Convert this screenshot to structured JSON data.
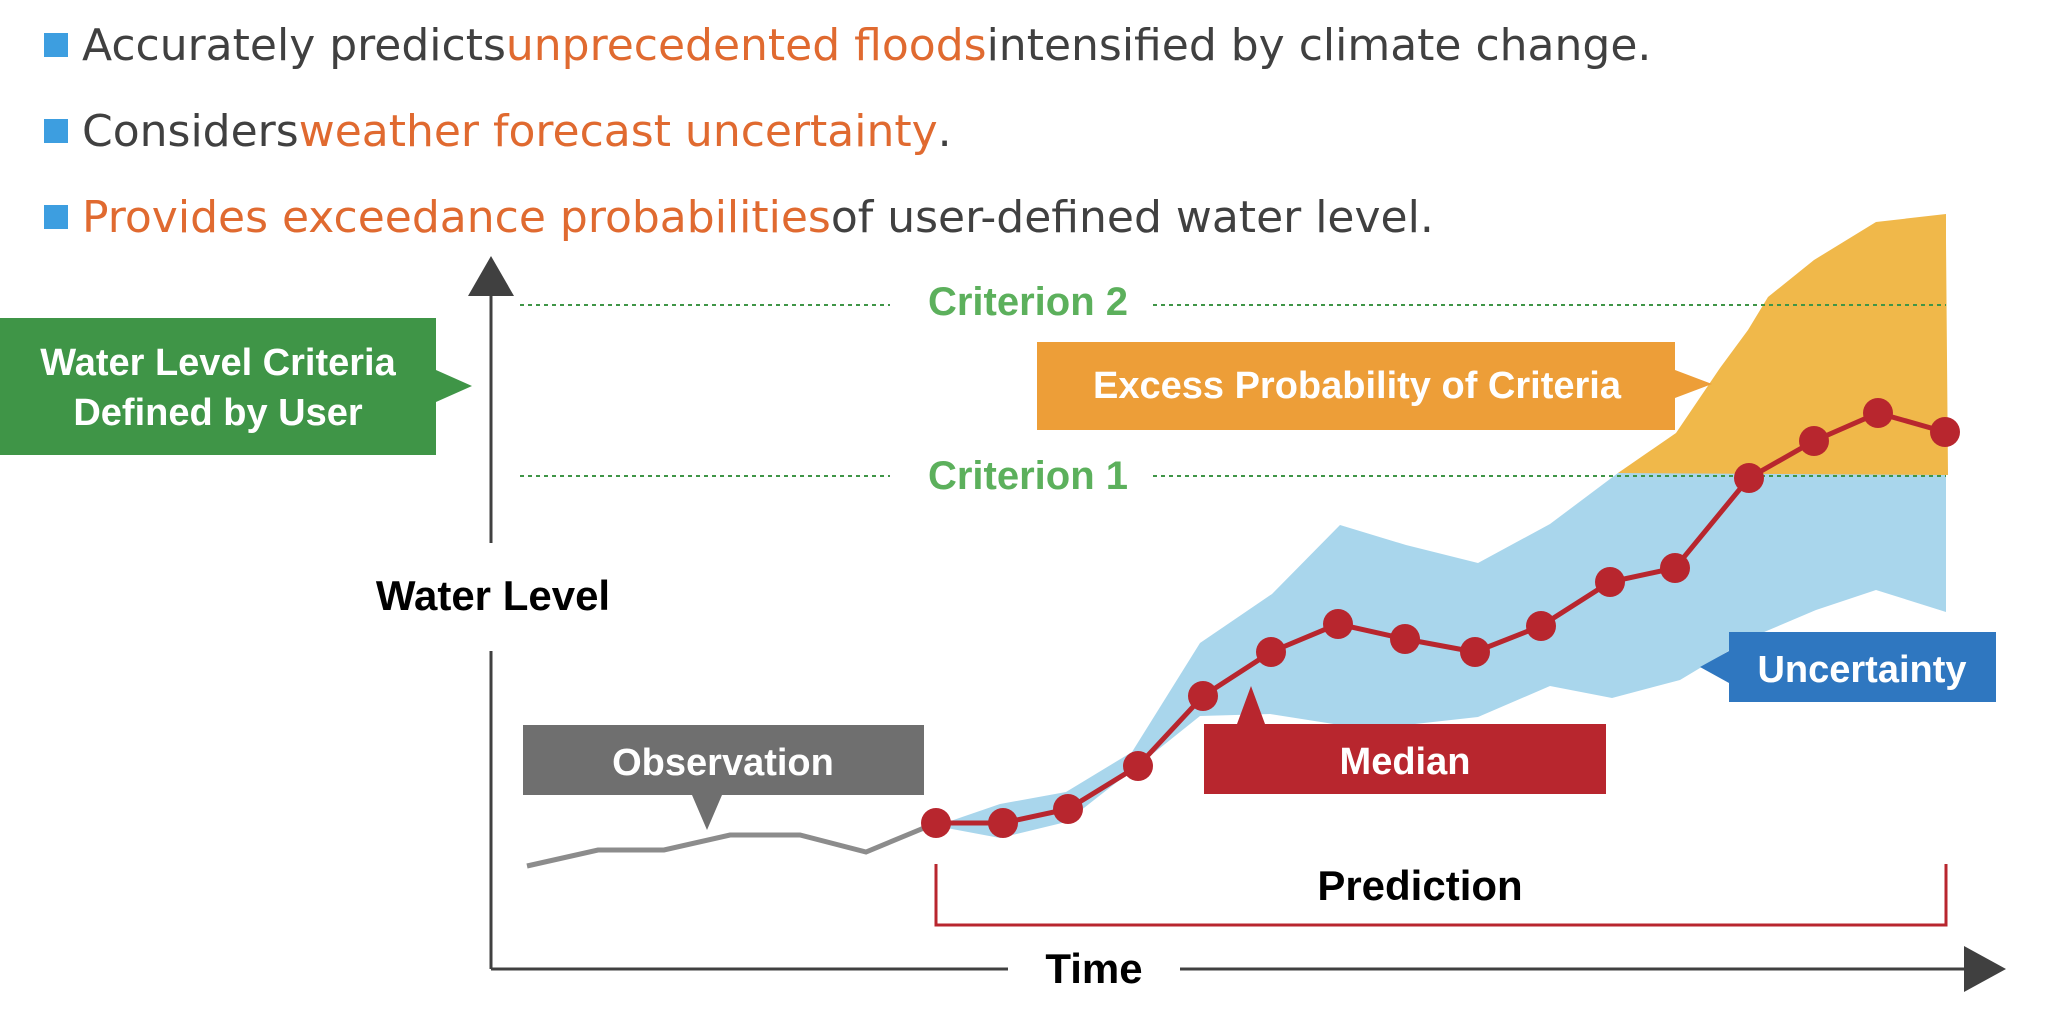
{
  "bullets": [
    {
      "before": "Accurately predicts ",
      "highlight": "unprecedented floods",
      "after": " intensified by climate change."
    },
    {
      "before": "Considers ",
      "highlight": "weather forecast uncertainty",
      "after": "."
    },
    {
      "before": "",
      "highlight": "Provides exceedance probabilities",
      "after": " of user-defined water level."
    }
  ],
  "colors": {
    "bullet": "#3d9ee0",
    "highlight": "#e06a30",
    "criteria_green": "#3f9547",
    "criteria_text_green": "#5cb05c",
    "excess_orange": "#ed9e38",
    "excess_fill": "#f0b84a",
    "uncertainty_blue": "#a9d6ec",
    "uncertainty_label": "#2f77c0",
    "median_red": "#b8262e",
    "observation_gray": "#6f6f6f"
  },
  "diagram": {
    "criteria_box_label": [
      "Water Level Criteria",
      "Defined by User"
    ],
    "criterion_1": "Criterion 1",
    "criterion_2": "Criterion 2",
    "excess_label": "Excess Probability of Criteria",
    "y_axis_label": "Water Level",
    "x_axis_label": "Time",
    "observation_label": "Observation",
    "median_label": "Median",
    "uncertainty_label": "Uncertainty",
    "prediction_label": "Prediction"
  }
}
